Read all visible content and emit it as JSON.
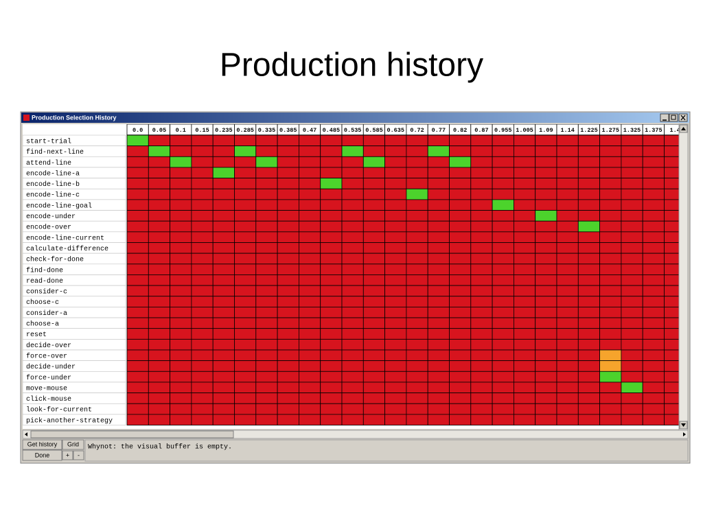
{
  "slide": {
    "title": "Production history"
  },
  "window": {
    "title": "Production Selection History",
    "columns": [
      "0.0",
      "0.05",
      "0.1",
      "0.15",
      "0.235",
      "0.285",
      "0.335",
      "0.385",
      "0.47",
      "0.485",
      "0.535",
      "0.585",
      "0.635",
      "0.72",
      "0.77",
      "0.82",
      "0.87",
      "0.955",
      "1.005",
      "1.09",
      "1.14",
      "1.225",
      "1.275",
      "1.325",
      "1.375",
      "1.4"
    ],
    "state_colors": {
      "r": "#d7141e",
      "g": "#4cd32c",
      "o": "#f6a42c"
    },
    "rows": [
      {
        "label": "start-trial",
        "states": "grrrrrrrrrrrrrrrrrrrrrrrrr"
      },
      {
        "label": "find-next-line",
        "states": "rgrrrgrrrrgrrrgrrrrrrrrrrr"
      },
      {
        "label": "attend-line",
        "states": "rrgrrrgrrrrgrrrgrrrrrrrrrr"
      },
      {
        "label": "encode-line-a",
        "states": "rrrrgrrrrrrrrrrrrrrrrrrrrr"
      },
      {
        "label": "encode-line-b",
        "states": "rrrrrrrrrgrrrrrrrrrrrrrrrr"
      },
      {
        "label": "encode-line-c",
        "states": "rrrrrrrrrrrrrgrrrrrrrrrrrr"
      },
      {
        "label": "encode-line-goal",
        "states": "rrrrrrrrrrrrrrrrrgrrrrrrrr"
      },
      {
        "label": "encode-under",
        "states": "rrrrrrrrrrrrrrrrrrrgrrrrrr"
      },
      {
        "label": "encode-over",
        "states": "rrrrrrrrrrrrrrrrrrrrrgrrrr"
      },
      {
        "label": "encode-line-current",
        "states": "rrrrrrrrrrrrrrrrrrrrrrrrrr"
      },
      {
        "label": "calculate-difference",
        "states": "rrrrrrrrrrrrrrrrrrrrrrrrrr"
      },
      {
        "label": "check-for-done",
        "states": "rrrrrrrrrrrrrrrrrrrrrrrrrr"
      },
      {
        "label": "find-done",
        "states": "rrrrrrrrrrrrrrrrrrrrrrrrrr"
      },
      {
        "label": "read-done",
        "states": "rrrrrrrrrrrrrrrrrrrrrrrrrr"
      },
      {
        "label": "consider-c",
        "states": "rrrrrrrrrrrrrrrrrrrrrrrrrr"
      },
      {
        "label": "choose-c",
        "states": "rrrrrrrrrrrrrrrrrrrrrrrrrr"
      },
      {
        "label": "consider-a",
        "states": "rrrrrrrrrrrrrrrrrrrrrrrrrr"
      },
      {
        "label": "choose-a",
        "states": "rrrrrrrrrrrrrrrrrrrrrrrrrr"
      },
      {
        "label": "reset",
        "states": "rrrrrrrrrrrrrrrrrrrrrrrrrr"
      },
      {
        "label": "decide-over",
        "states": "rrrrrrrrrrrrrrrrrrrrrrrrrr"
      },
      {
        "label": "force-over",
        "states": "rrrrrrrrrrrrrrrrrrrrrrorrr"
      },
      {
        "label": "decide-under",
        "states": "rrrrrrrrrrrrrrrrrrrrrrorrr"
      },
      {
        "label": "force-under",
        "states": "rrrrrrrrrrrrrrrrrrrrrrgrrr"
      },
      {
        "label": "move-mouse",
        "states": "rrrrrrrrrrrrrrrrrrrrrrrgrr"
      },
      {
        "label": "click-mouse",
        "states": "rrrrrrrrrrrrrrrrrrrrrrrrrr"
      },
      {
        "label": "look-for-current",
        "states": "rrrrrrrrrrrrrrrrrrrrrrrrrr"
      },
      {
        "label": "pick-another-strategy",
        "states": "rrrrrrrrrrrrrrrrrrrrrrrrrr"
      }
    ],
    "buttons": {
      "get_history": "Get history",
      "grid": "Grid",
      "done": "Done",
      "plus": "+",
      "minus": "-"
    },
    "status": "Whynot: the visual buffer is empty."
  }
}
